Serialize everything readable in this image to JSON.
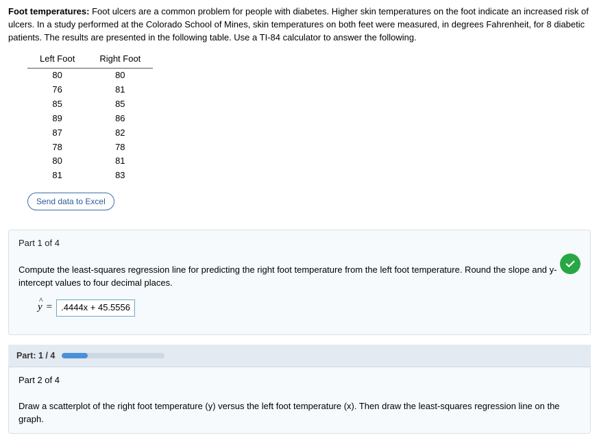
{
  "intro": {
    "bold_lead": "Foot temperatures:",
    "text": " Foot ulcers are a common problem for people with diabetes. Higher skin temperatures on the foot indicate an increased risk of ulcers. In a study performed at the Colorado School of Mines, skin temperatures on both feet were measured, in degrees Fahrenheit, for 8 diabetic patients. The results are presented in the following table. Use a TI-84 calculator to answer the following."
  },
  "table": {
    "columns": [
      "Left Foot",
      "Right Foot"
    ],
    "rows": [
      [
        "80",
        "80"
      ],
      [
        "76",
        "81"
      ],
      [
        "85",
        "85"
      ],
      [
        "89",
        "86"
      ],
      [
        "87",
        "82"
      ],
      [
        "78",
        "78"
      ],
      [
        "80",
        "81"
      ],
      [
        "81",
        "83"
      ]
    ]
  },
  "excel_button": "Send data to Excel",
  "part1": {
    "header": "Part 1 of 4",
    "prompt": "Compute the least-squares regression line for predicting the right foot temperature from the left foot temperature. Round the slope and y-intercept values to four decimal places.",
    "yhat": "y",
    "equals": "=",
    "answer": ".4444x + 45.5556",
    "checked": true
  },
  "progress": {
    "label": "Part: 1 / 4",
    "fill_pct": 25
  },
  "part2": {
    "header": "Part 2 of 4",
    "prompt": "Draw a scatterplot of the right foot temperature (y) versus the left foot temperature (x). Then draw the least-squares regression line on the graph."
  },
  "colors": {
    "card_bg": "#f6fafc",
    "card_border": "#d6e0e6",
    "progress_bg": "#e3eaf2",
    "progress_fill": "#4a90d9",
    "check_green": "#28a745",
    "answer_border": "#6aa7c4",
    "excel_border": "#3b6ea8"
  }
}
